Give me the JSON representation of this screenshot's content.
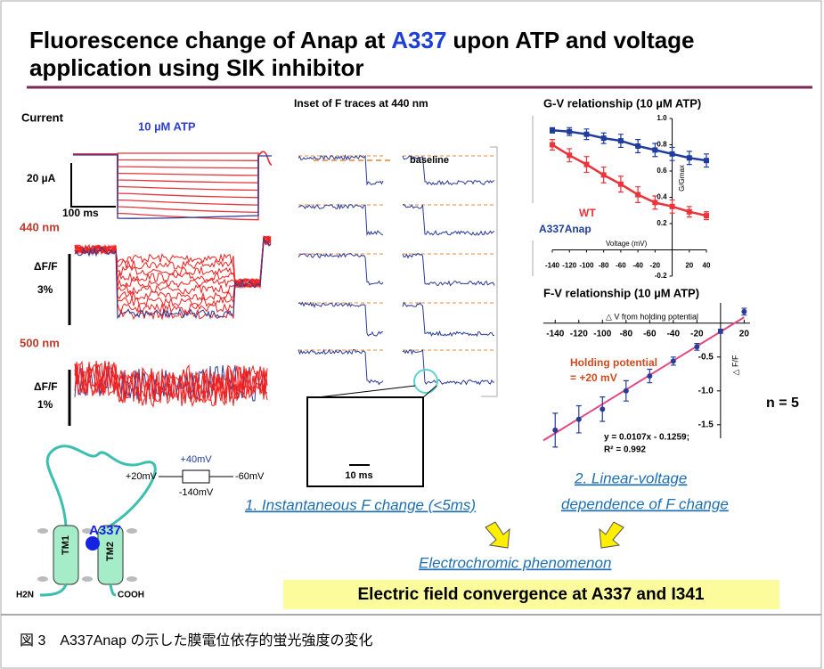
{
  "header": {
    "title_a": "Fluorescence change of Anap at",
    "title_highlight": "A337",
    "title_b": "upon ATP and voltage",
    "title_line2": "application using SIK inhibitor"
  },
  "left_panel": {
    "current_label": "Current",
    "atp_label": "10 µM ATP",
    "current_scale": "20 µA",
    "time_scale": "100 ms",
    "wl1": "440 nm",
    "df_label1": "ΔF/F",
    "df_scale1": "3%",
    "wl2": "500 nm",
    "df_label2": "ΔF/F",
    "df_scale2": "1%"
  },
  "protocol": {
    "hold": "+20mV",
    "top": "+40mV",
    "bottom": "-140mV",
    "end": "-60mV"
  },
  "topology": {
    "tm1": "TM1",
    "tm2": "TM2",
    "site": "A337",
    "n_term": "H2N",
    "c_term": "COOH"
  },
  "inset": {
    "title": "Inset of F traces at 440 nm",
    "legend": "baseline",
    "zoom_scale": "10 ms",
    "finding": "1. Instantaneous F change (<5ms)"
  },
  "gv": {
    "title": "G-V relationship (10 µM ATP)",
    "x_label": "Voltage (mV)",
    "y_label": "G/Gmax",
    "x": [
      -140,
      -120,
      -100,
      -80,
      -60,
      -40,
      -20,
      0,
      20,
      40
    ],
    "xlim": [
      -140,
      40
    ],
    "ylim": [
      -0.2,
      1
    ],
    "xticks": [
      -140,
      -120,
      -100,
      -80,
      -60,
      -40,
      -20,
      20,
      40
    ],
    "yticks": [
      {
        "value": 1,
        "label": "1.0"
      },
      0.8,
      0.6,
      0.4,
      0.2,
      -0.2
    ],
    "series": [
      {
        "name": "WT",
        "color": "#e8343a",
        "values": [
          0.8,
          0.72,
          0.65,
          0.57,
          0.5,
          0.42,
          0.36,
          0.33,
          0.29,
          0.26
        ],
        "errors": [
          0.04,
          0.05,
          0.06,
          0.06,
          0.06,
          0.06,
          0.05,
          0.05,
          0.04,
          0.03
        ]
      },
      {
        "name": "A337Anap",
        "color": "#1f3c9c",
        "values": [
          0.91,
          0.9,
          0.88,
          0.85,
          0.83,
          0.79,
          0.76,
          0.73,
          0.7,
          0.68
        ],
        "errors": [
          0.02,
          0.03,
          0.04,
          0.04,
          0.05,
          0.05,
          0.05,
          0.05,
          0.05,
          0.05
        ]
      }
    ]
  },
  "fv": {
    "title": "F-V relationship (10 µM ATP)",
    "x_label": "△ V from holding potential",
    "y_label": "△ F/F",
    "x": [
      -140,
      -120,
      -100,
      -80,
      -60,
      -40,
      -20,
      0,
      20
    ],
    "values": [
      -1.58,
      -1.42,
      -1.27,
      -1.0,
      -0.78,
      -0.56,
      -0.35,
      -0.12,
      0.17
    ],
    "errors": [
      0.25,
      0.2,
      0.18,
      0.15,
      0.1,
      0.06,
      0.05,
      0.03,
      0.05
    ],
    "color": "#2a3a96",
    "fit_color": "#e64580",
    "fit": {
      "slope": 0.0107,
      "intercept": -0.1259
    },
    "xlim": [
      -150,
      25
    ],
    "ylim": [
      -1.7,
      0.3
    ],
    "xticks": [
      -140,
      -120,
      -100,
      -80,
      -60,
      -40,
      -20,
      20
    ],
    "yticks": [
      -0.5,
      {
        "value": -1,
        "label": "-1.0"
      },
      -1.5
    ],
    "holding_line1": "Holding potential",
    "holding_line2": "= +20 mV",
    "n_label": "n = 5",
    "equation": "y = 0.0107x - 0.1259;",
    "r2": "R² = 0.992",
    "finding_line1": "2. Linear-voltage",
    "finding_line2": "dependence of F change"
  },
  "conclusion": {
    "phenomenon": "Electrochromic phenomenon",
    "statement": "Electric field convergence at A337 and I341"
  },
  "caption": "図 3　A337Anap の示した膜電位依存的蛍光強度の変化"
}
